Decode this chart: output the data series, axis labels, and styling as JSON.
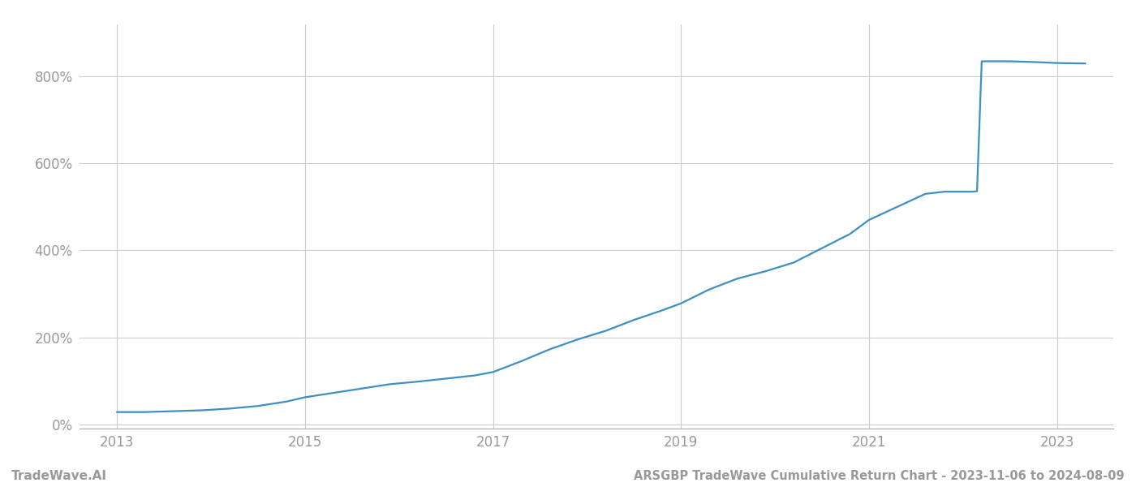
{
  "title": "ARSGBP TradeWave Cumulative Return Chart - 2023-11-06 to 2024-08-09",
  "watermark": "TradeWave.AI",
  "line_color": "#3d8fc4",
  "background_color": "#ffffff",
  "grid_color": "#cccccc",
  "x_tick_color": "#999999",
  "y_tick_color": "#999999",
  "xlim": [
    2012.6,
    2023.6
  ],
  "ylim": [
    -0.1,
    9.2
  ],
  "x_ticks": [
    2013,
    2015,
    2017,
    2019,
    2021,
    2023
  ],
  "y_ticks": [
    0,
    2,
    4,
    6,
    8
  ],
  "y_tick_labels": [
    "0%",
    "200%",
    "400%",
    "600%",
    "800%"
  ],
  "years": [
    2013.0,
    2013.3,
    2013.6,
    2013.9,
    2014.2,
    2014.5,
    2014.8,
    2015.0,
    2015.3,
    2015.6,
    2015.9,
    2016.2,
    2016.5,
    2016.8,
    2017.0,
    2017.3,
    2017.6,
    2017.9,
    2018.2,
    2018.5,
    2018.8,
    2019.0,
    2019.3,
    2019.6,
    2019.9,
    2020.2,
    2020.5,
    2020.8,
    2021.0,
    2021.2,
    2021.4,
    2021.5,
    2021.6,
    2021.8,
    2022.0,
    2022.1,
    2022.15,
    2022.2,
    2022.5,
    2022.8,
    2023.0,
    2023.3
  ],
  "values": [
    0.28,
    0.28,
    0.3,
    0.32,
    0.36,
    0.42,
    0.52,
    0.62,
    0.72,
    0.82,
    0.92,
    0.98,
    1.05,
    1.12,
    1.2,
    1.45,
    1.72,
    1.95,
    2.15,
    2.4,
    2.62,
    2.78,
    3.1,
    3.35,
    3.52,
    3.72,
    4.05,
    4.38,
    4.7,
    4.9,
    5.1,
    5.2,
    5.3,
    5.35,
    5.35,
    5.35,
    5.36,
    8.35,
    8.35,
    8.33,
    8.31,
    8.3
  ],
  "title_fontsize": 10.5,
  "watermark_fontsize": 11,
  "tick_fontsize": 12,
  "line_width": 1.6
}
